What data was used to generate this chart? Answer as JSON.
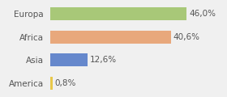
{
  "categories": [
    "America",
    "Asia",
    "Africa",
    "Europa"
  ],
  "values": [
    0.8,
    12.6,
    40.6,
    46.0
  ],
  "bar_colors": [
    "#e8c84a",
    "#6688cc",
    "#e8a87c",
    "#a8c878"
  ],
  "labels": [
    "0,8%",
    "12,6%",
    "40,6%",
    "46,0%"
  ],
  "xlim": [
    0,
    58
  ],
  "background_color": "#f0f0f0",
  "bar_height": 0.55,
  "label_fontsize": 7.5,
  "tick_fontsize": 7.5,
  "figsize": [
    2.8,
    1.2
  ],
  "dpi": 100
}
